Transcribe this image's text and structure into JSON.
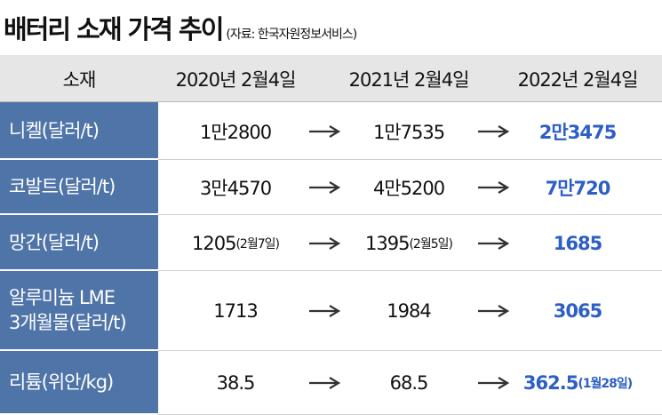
{
  "header": {
    "title": "배터리 소재 가격 추이",
    "source": "(자료: 한국자원정보서비스)"
  },
  "table": {
    "columns": [
      "소재",
      "2020년 2월4일",
      "2021년 2월4일",
      "2022년 2월4일"
    ],
    "rows": [
      {
        "material": [
          "니켈(달러/t)"
        ],
        "values": [
          {
            "text": "1만2800"
          },
          {
            "text": "1만7535"
          },
          {
            "text": "2만3475"
          }
        ]
      },
      {
        "material": [
          "코발트(달러/t)"
        ],
        "values": [
          {
            "text": "3만4570"
          },
          {
            "text": "4만5200"
          },
          {
            "text": "7만720"
          }
        ]
      },
      {
        "material": [
          "망간(달러/t)"
        ],
        "values": [
          {
            "text": "1205",
            "note": "(2월7일)"
          },
          {
            "text": "1395",
            "note": "(2월5일)"
          },
          {
            "text": "1685"
          }
        ]
      },
      {
        "material": [
          "알루미늄 LME",
          "3개월물(달러/t)"
        ],
        "values": [
          {
            "text": "1713"
          },
          {
            "text": "1984"
          },
          {
            "text": "3065"
          }
        ]
      },
      {
        "material": [
          "리튬(위안/kg)"
        ],
        "values": [
          {
            "text": "38.5"
          },
          {
            "text": "68.5"
          },
          {
            "text": "362.5",
            "note": "(1월28일)"
          }
        ]
      }
    ]
  }
}
